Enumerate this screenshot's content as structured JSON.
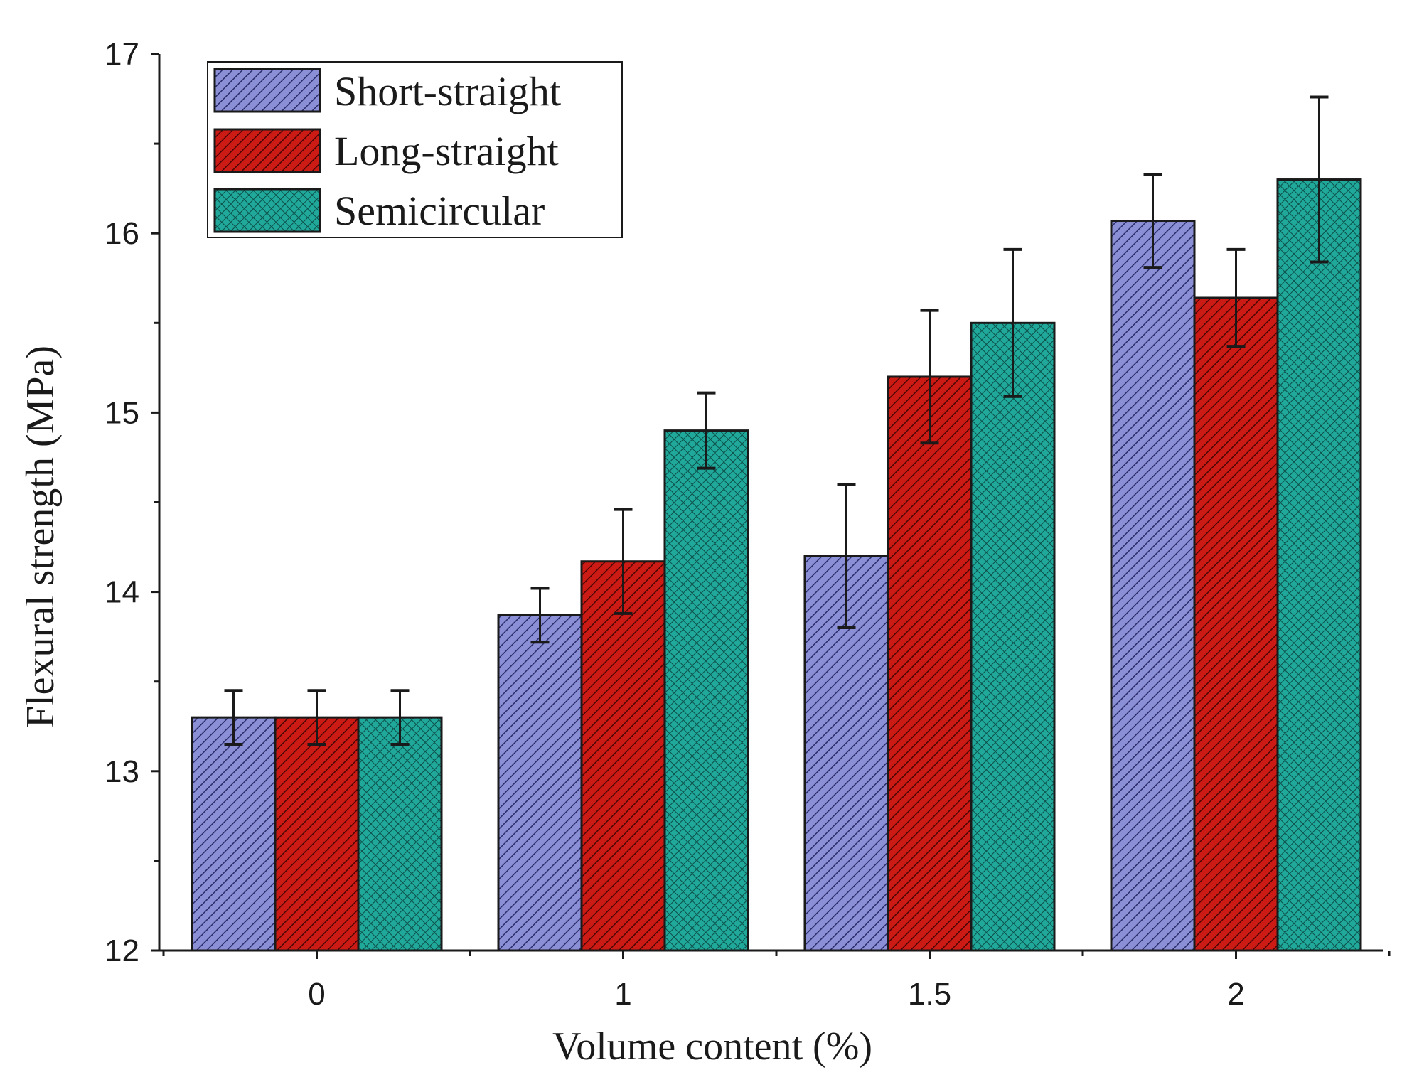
{
  "chart_data": {
    "type": "bar",
    "title": "",
    "xlabel": "Volume content (%)",
    "ylabel": "Flexural strength (MPa)",
    "categories": [
      "0",
      "1",
      "1.5",
      "2"
    ],
    "ylim": [
      12,
      17
    ],
    "yticks": [
      12,
      13,
      14,
      15,
      16,
      17
    ],
    "grid": false,
    "legend_position": "top-left",
    "series": [
      {
        "name": "Short-straight",
        "color": "#8b8fd6",
        "pattern": "diagonal-hatch",
        "values": [
          13.3,
          13.87,
          14.2,
          16.07
        ],
        "errors": [
          0.15,
          0.15,
          0.4,
          0.26
        ]
      },
      {
        "name": "Long-straight",
        "color": "#cc1a14",
        "pattern": "diagonal-hatch",
        "values": [
          13.3,
          14.17,
          15.2,
          15.64
        ],
        "errors": [
          0.15,
          0.29,
          0.37,
          0.27
        ]
      },
      {
        "name": "Semicircular",
        "color": "#20a89a",
        "pattern": "crosshatch",
        "values": [
          13.3,
          14.9,
          15.5,
          16.3
        ],
        "errors": [
          0.15,
          0.21,
          0.41,
          0.46
        ]
      }
    ]
  }
}
